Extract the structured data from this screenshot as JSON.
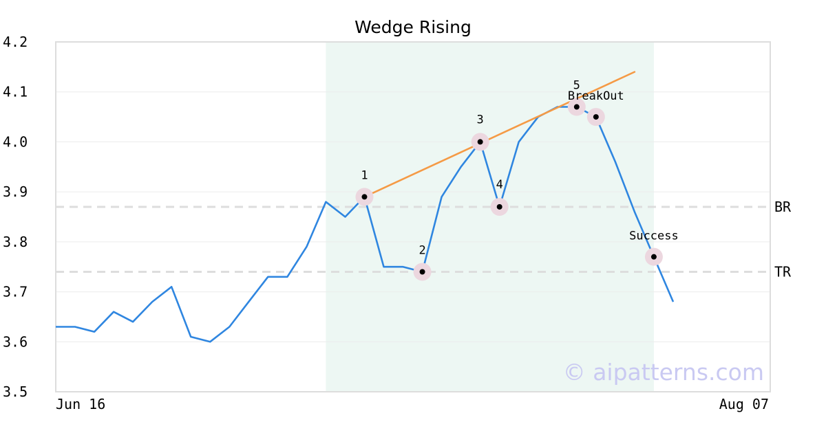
{
  "chart_data": {
    "type": "line",
    "title": "Wedge Rising",
    "x_labels": [
      "Jun 16",
      "Aug 07"
    ],
    "ylim": [
      3.5,
      4.2
    ],
    "yticks": [
      "3.5",
      "3.6",
      "3.7",
      "3.8",
      "3.9",
      "4.0",
      "4.1",
      "4.2"
    ],
    "grid": true,
    "colors": {
      "price": "#2f86e0",
      "trendline": "#f59a45",
      "band": "#edf7f3",
      "hline": "#dddddd",
      "marker_ring": "#ecd7df",
      "marker_dot": "#000000",
      "frame": "#dddddd",
      "watermark": "#c9c9f2"
    },
    "series": [
      {
        "values": [
          3.63,
          3.63,
          3.62,
          3.66,
          3.64,
          3.68,
          3.71,
          3.61,
          3.6,
          3.63,
          3.68,
          3.73,
          3.73,
          3.79,
          3.88,
          3.85,
          3.89,
          3.75,
          3.75,
          3.74,
          3.89,
          3.95,
          4.0,
          3.87,
          4.0,
          4.05,
          4.07,
          4.07,
          4.05,
          3.96,
          3.86,
          3.77,
          3.68
        ]
      }
    ],
    "highlight_region": {
      "start_index": 14,
      "end_index": 31
    },
    "trendline": {
      "from": {
        "index": 16,
        "value": 3.89
      },
      "to": {
        "index": 30,
        "value": 4.14
      }
    },
    "horizontal_lines": [
      {
        "label": "BR",
        "value": 3.87
      },
      {
        "label": "TR",
        "value": 3.74
      }
    ],
    "annotations": [
      {
        "label": "1",
        "index": 16,
        "value": 3.89
      },
      {
        "label": "2",
        "index": 19,
        "value": 3.74
      },
      {
        "label": "3",
        "index": 22,
        "value": 4.0
      },
      {
        "label": "4",
        "index": 23,
        "value": 3.87
      },
      {
        "label": "5",
        "index": 27,
        "value": 4.07
      },
      {
        "label": "BreakOut",
        "index": 28,
        "value": 4.05
      },
      {
        "label": "Success",
        "index": 31,
        "value": 3.77
      }
    ],
    "watermark": "© aipatterns.com"
  }
}
